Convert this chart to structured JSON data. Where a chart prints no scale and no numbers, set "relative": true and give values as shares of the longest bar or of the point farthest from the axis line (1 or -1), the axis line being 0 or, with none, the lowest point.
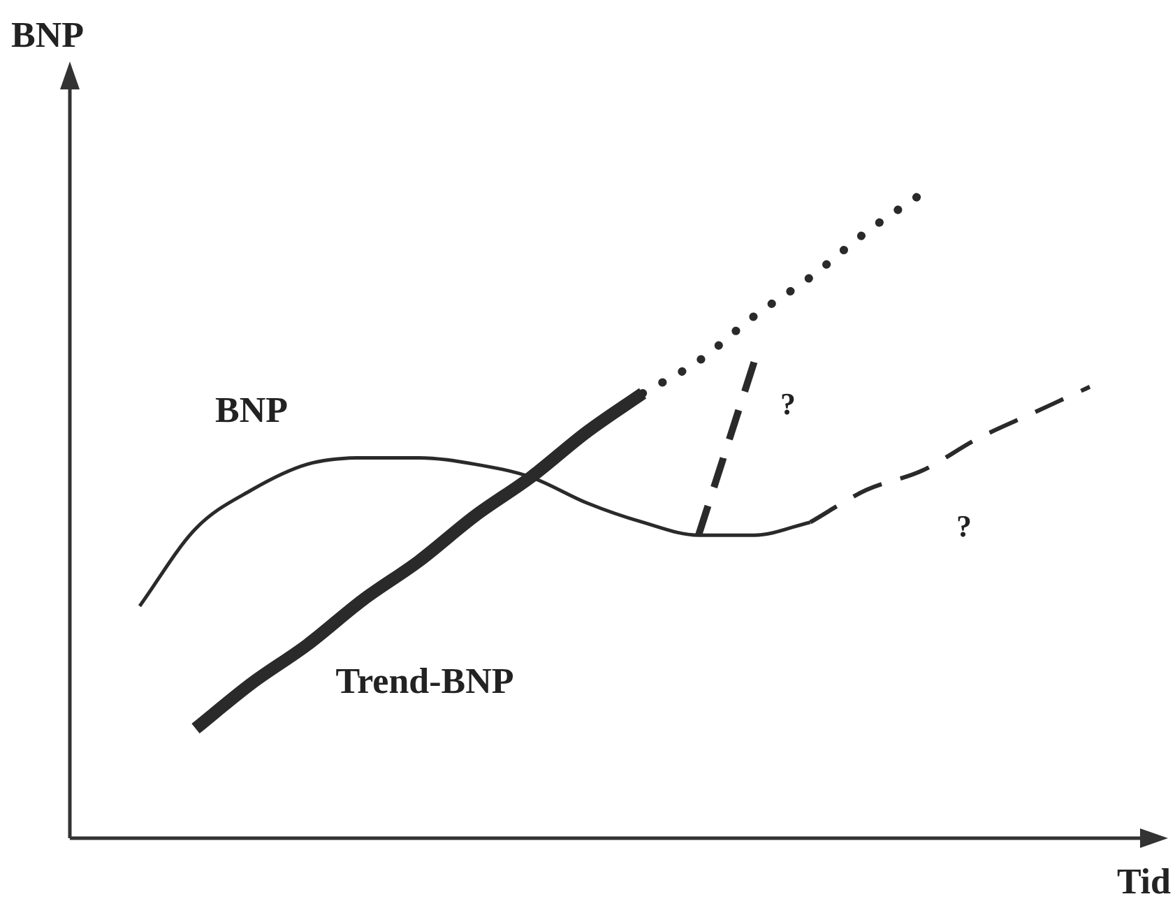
{
  "chart_data": {
    "type": "line",
    "relative": true,
    "xlabel": "Tid",
    "ylabel": "BNP",
    "tick_labels": false,
    "legend": false,
    "marker": "none",
    "categories": [
      null,
      null,
      null,
      null,
      null,
      null,
      null,
      null,
      null,
      null,
      null,
      null,
      null,
      null,
      null,
      null,
      null,
      null
    ],
    "series": [
      {
        "name": "BNP",
        "color": "#2a2a2a",
        "line_style": "solid",
        "values": [
          0.36,
          0.48,
          0.54,
          0.58,
          0.59,
          0.59,
          0.58,
          0.56,
          0.52,
          0.49,
          0.47,
          0.47,
          0.49,
          null,
          null,
          null,
          null,
          null
        ]
      },
      {
        "color": "#2a2a2a",
        "line_style": "dashed",
        "values": [
          null,
          null,
          null,
          null,
          null,
          null,
          null,
          null,
          null,
          null,
          null,
          null,
          0.49,
          0.54,
          0.57,
          0.62,
          0.66,
          0.7
        ]
      },
      {
        "name": "Trend-BNP",
        "color": "#2a2a2a",
        "line_style": "solid",
        "values": [
          null,
          0.17,
          0.24,
          0.3,
          0.37,
          0.43,
          0.5,
          0.56,
          0.63,
          0.69,
          null,
          null,
          null,
          null,
          null,
          null,
          null,
          null
        ]
      },
      {
        "color": "#2a2a2a",
        "line_style": "dotted",
        "values": [
          null,
          null,
          null,
          null,
          null,
          null,
          null,
          null,
          null,
          0.69,
          0.74,
          0.81,
          0.87,
          0.94,
          1.0,
          null,
          null,
          null
        ]
      },
      {
        "color": "#2a2a2a",
        "line_style": "dashed",
        "values": [
          null,
          null,
          null,
          null,
          null,
          null,
          null,
          null,
          null,
          null,
          0.47,
          0.74,
          null,
          null,
          null,
          null,
          null,
          null
        ]
      }
    ],
    "annotations": [
      "?",
      "?"
    ]
  }
}
